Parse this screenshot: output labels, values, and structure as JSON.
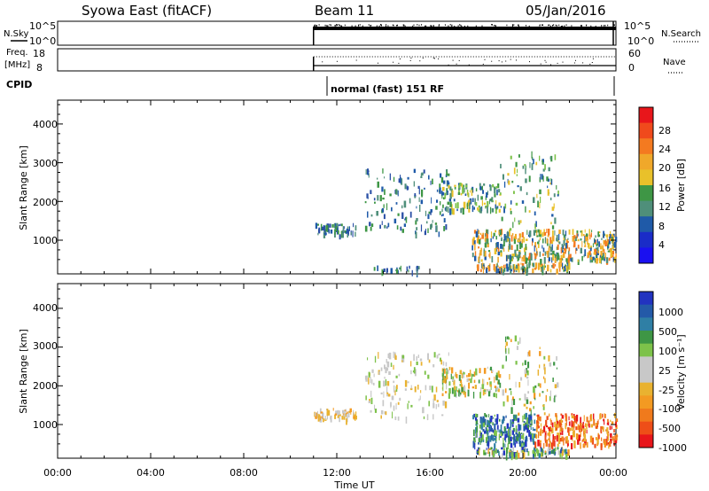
{
  "header": {
    "title": "Syowa East (fitACF)",
    "beam": "Beam 11",
    "date": "05/Jan/2016"
  },
  "nsky": {
    "label": "N.Sky",
    "ticks": [
      "10^5",
      "10^0"
    ],
    "right_label": "N.Search",
    "right_ticks": [
      "10^5",
      "10^0"
    ]
  },
  "freq": {
    "label_line1": "Freq.",
    "label_line2": "[MHz]",
    "ticks": [
      "18",
      "8"
    ],
    "right_label": "Nave",
    "right_ticks": [
      "60",
      "0"
    ]
  },
  "cpid": {
    "label": "CPID",
    "program": "normal (fast) 151 RF"
  },
  "power_colorbar": {
    "label": "Power [dB]",
    "ticks": [
      "28",
      "24",
      "20",
      "16",
      "12",
      "8",
      "4"
    ],
    "colors": [
      "#e8161b",
      "#f04a1c",
      "#f47a20",
      "#f0a82a",
      "#e9c12a",
      "#3e9645",
      "#4f8f7a",
      "#1f5aa8",
      "#1a2cc8",
      "#1a10f0"
    ]
  },
  "velocity_colorbar": {
    "label": "Velocity [m s⁻¹]",
    "ticks": [
      "1000",
      "500",
      "100",
      "25",
      "-25",
      "-100",
      "-500",
      "-1000"
    ],
    "colors": [
      "#2233c0",
      "#245aa8",
      "#2f7fa5",
      "#3e9645",
      "#7dc24a",
      "#c8c8c8",
      "#c8c8c8",
      "#e9b230",
      "#f39a22",
      "#f07a1c",
      "#ee4e18",
      "#e8161b"
    ]
  },
  "axes": {
    "ylabel": "Slant Range [km]",
    "xlabel": "Time UT",
    "yticks": [
      "4000",
      "3000",
      "2000",
      "1000"
    ],
    "xticks": [
      "00:00",
      "04:00",
      "08:00",
      "12:00",
      "16:00",
      "20:00",
      "00:00"
    ]
  },
  "chart_data": [
    {
      "type": "heatmap",
      "title": "",
      "xlabel": "",
      "ylabel": "Slant Range [km]",
      "xlim_hours": [
        0,
        24
      ],
      "ylim_km": [
        180,
        4600
      ],
      "colorbar": "Power [dB]",
      "regions": [
        {
          "t_start": 11.0,
          "t_end": 12.8,
          "r_start": 1100,
          "r_end": 1500,
          "level": "low"
        },
        {
          "t_start": 13.2,
          "t_end": 16.8,
          "r_start": 1200,
          "r_end": 2900,
          "level": "low-mid"
        },
        {
          "t_start": 16.5,
          "t_end": 19.0,
          "r_start": 1800,
          "r_end": 2500,
          "level": "mid"
        },
        {
          "t_start": 17.8,
          "t_end": 24.0,
          "r_start": 500,
          "r_end": 1300,
          "level": "mid-high"
        },
        {
          "t_start": 18.0,
          "t_end": 22.0,
          "r_start": 250,
          "r_end": 450,
          "level": "mid-high"
        },
        {
          "t_start": 19.0,
          "t_end": 21.5,
          "r_start": 1300,
          "r_end": 3300,
          "level": "low-mid"
        }
      ]
    },
    {
      "type": "heatmap",
      "title": "",
      "xlabel": "Time UT",
      "ylabel": "Slant Range [km]",
      "xlim_hours": [
        0,
        24
      ],
      "ylim_km": [
        180,
        4600
      ],
      "colorbar": "Velocity [m s⁻¹]",
      "regions": [
        {
          "t_start": 11.0,
          "t_end": 12.8,
          "r_start": 1100,
          "r_end": 1500,
          "level": "slow-negative"
        },
        {
          "t_start": 13.2,
          "t_end": 16.8,
          "r_start": 1200,
          "r_end": 2900,
          "level": "slow"
        },
        {
          "t_start": 16.5,
          "t_end": 19.0,
          "r_start": 1800,
          "r_end": 2500,
          "level": "mixed"
        },
        {
          "t_start": 17.8,
          "t_end": 20.5,
          "r_start": 500,
          "r_end": 1300,
          "level": "positive"
        },
        {
          "t_start": 20.5,
          "t_end": 24.0,
          "r_start": 500,
          "r_end": 1300,
          "level": "negative"
        },
        {
          "t_start": 19.0,
          "t_end": 21.5,
          "r_start": 1300,
          "r_end": 3300,
          "level": "mixed"
        }
      ]
    }
  ]
}
